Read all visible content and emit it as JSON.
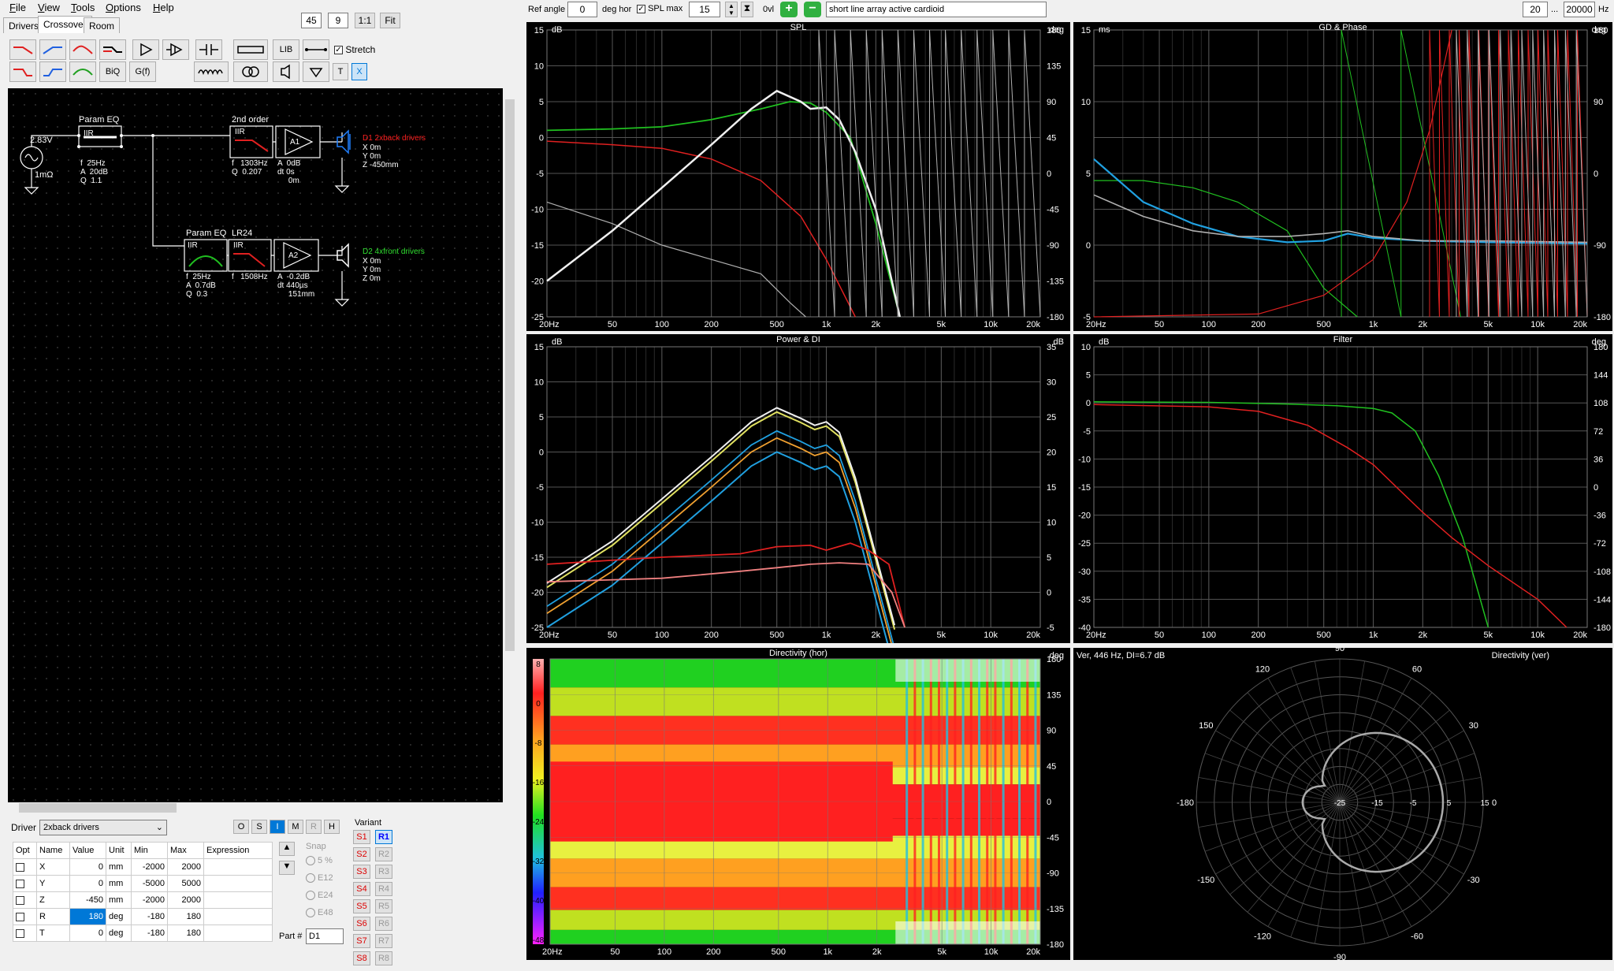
{
  "menu": [
    "File",
    "View",
    "Tools",
    "Options",
    "Help"
  ],
  "tabs": [
    "Drivers",
    "Crossover",
    "Room"
  ],
  "view": {
    "zoom1": "45",
    "zoom2": "9",
    "ratio_btn": "1:1",
    "fit_btn": "Fit"
  },
  "toolbar": {
    "biq": "BiQ",
    "gf": "G(f)",
    "lib": "LIB",
    "stretch": "Stretch",
    "t": "T",
    "x": "X"
  },
  "top": {
    "ref_angle_label": "Ref angle",
    "ref_angle": "0",
    "deg_hor": "deg hor",
    "spl_max_label": "SPL max",
    "spl_max": "15",
    "ovl": "0vl",
    "description": "short line array active cardioid",
    "f_min": "20",
    "dots": "...",
    "f_max": "20000",
    "hz": "Hz"
  },
  "schematic": {
    "source_voltage": "2.83V",
    "source_r": "1mΩ",
    "peq1": {
      "title": "Param EQ",
      "type": "IIR",
      "params": "f  25Hz\nA  20dB\nQ  1.1"
    },
    "lp1": {
      "title": "2nd order",
      "type": "IIR",
      "params": "f   1303Hz\nQ  0.207"
    },
    "amp1": {
      "name": "A1",
      "params": "A  0dB\ndt 0s\n     0m"
    },
    "d1": {
      "name": "D1 2xback drivers",
      "params": "X 0m\nY 0m\nZ -450mm",
      "color": "#ff2020"
    },
    "peq2": {
      "title": "Param EQ",
      "type": "IIR",
      "params": "f  25Hz\nA  0.7dB\nQ  0.3"
    },
    "lp2": {
      "title": "LR24",
      "type": "IIR",
      "params": "f   1508Hz"
    },
    "amp2": {
      "name": "A2",
      "params": "A  -0.2dB\ndt 440µs\n     151mm"
    },
    "d2": {
      "name": "D2 4xfront drivers",
      "params": "X 0m\nY 0m\nZ 0m",
      "color": "#30e030"
    }
  },
  "driver": {
    "label": "Driver",
    "selected": "2xback drivers"
  },
  "modes": [
    "O",
    "S",
    "I",
    "M",
    "R",
    "H"
  ],
  "table": {
    "headers": [
      "Opt",
      "Name",
      "Value",
      "Unit",
      "Min",
      "Max",
      "Expression"
    ],
    "rows": [
      {
        "name": "X",
        "value": "0",
        "unit": "mm",
        "min": "-2000",
        "max": "2000"
      },
      {
        "name": "Y",
        "value": "0",
        "unit": "mm",
        "min": "-5000",
        "max": "5000"
      },
      {
        "name": "Z",
        "value": "-450",
        "unit": "mm",
        "min": "-2000",
        "max": "2000"
      },
      {
        "name": "R",
        "value": "180",
        "unit": "deg",
        "min": "-180",
        "max": "180"
      },
      {
        "name": "T",
        "value": "0",
        "unit": "deg",
        "min": "-180",
        "max": "180"
      }
    ]
  },
  "snap": {
    "label": "Snap",
    "options": [
      "5 %",
      "E12",
      "E24",
      "E48"
    ]
  },
  "part": {
    "label": "Part #",
    "value": "D1"
  },
  "variant": {
    "label": "Variant",
    "s": [
      "S1",
      "S2",
      "S3",
      "S4",
      "S5",
      "S6",
      "S7",
      "S8"
    ],
    "r": [
      "R1",
      "R2",
      "R3",
      "R4",
      "R5",
      "R6",
      "R7",
      "R8"
    ]
  },
  "freq_ticks": [
    "20Hz",
    "50",
    "100",
    "200",
    "500",
    "1k",
    "2k",
    "5k",
    "10k",
    "20k"
  ],
  "panels": {
    "spl": {
      "title": "SPL",
      "unit_l": "dB",
      "unit_r": "deg",
      "yl": [
        "15",
        "10",
        "5",
        "0",
        "-5",
        "-10",
        "-15",
        "-20",
        "-25"
      ],
      "yr": [
        "180",
        "135",
        "90",
        "45",
        "0",
        "-45",
        "-90",
        "-135",
        "-180"
      ]
    },
    "gd": {
      "title": "GD & Phase",
      "unit_l": "ms",
      "unit_r": "deg",
      "yl": [
        "15",
        "10",
        "5",
        "0",
        "-5"
      ],
      "yr": [
        "180",
        "90",
        "0",
        "-90",
        "-180"
      ]
    },
    "power": {
      "title": "Power & DI",
      "unit_l": "dB",
      "unit_r": "dB",
      "yl": [
        "15",
        "10",
        "5",
        "0",
        "-5",
        "-10",
        "-15",
        "-20",
        "-25"
      ],
      "yr": [
        "35",
        "30",
        "25",
        "20",
        "15",
        "10",
        "5",
        "0",
        "-5"
      ]
    },
    "filter": {
      "title": "Filter",
      "unit_l": "dB",
      "unit_r": "deg",
      "yl": [
        "10",
        "5",
        "0",
        "-5",
        "-10",
        "-15",
        "-20",
        "-25",
        "-30",
        "-35",
        "-40"
      ],
      "yr": [
        "180",
        "144",
        "108",
        "72",
        "36",
        "0",
        "-36",
        "-72",
        "-108",
        "-144",
        "-180"
      ]
    },
    "dir": {
      "title": "Directivity (hor)",
      "unit_r": "deg",
      "scale": [
        "8",
        "0",
        "-8",
        "-16",
        "-24",
        "-32",
        "-40",
        "-48"
      ],
      "yr": [
        "180",
        "135",
        "90",
        "45",
        "0",
        "-45",
        "-90",
        "-135",
        "-180"
      ]
    },
    "polar": {
      "title": "Directivity (ver)",
      "info": "Ver, 446 Hz, DI=6.7 dB",
      "angles": [
        "90",
        "60",
        "30",
        "0",
        "-30",
        "-60",
        "-90",
        "-120",
        "-150",
        "-180",
        "150",
        "120"
      ],
      "rings": [
        "-25",
        "-15",
        "-5",
        "5",
        "15"
      ]
    }
  },
  "colors": {
    "red": "#e02020",
    "green": "#20c020",
    "white": "#f0f0f0",
    "blue": "#20a0e0",
    "gray": "#b0b0b0",
    "orange": "#f0a030",
    "yellow": "#e0e060",
    "salmon": "#f08080"
  }
}
